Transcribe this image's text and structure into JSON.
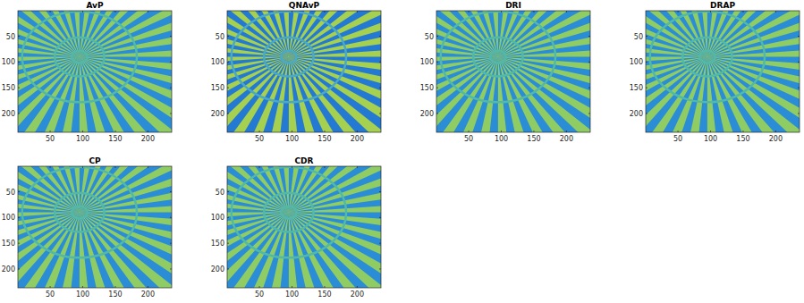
{
  "chart_data": [
    {
      "type": "image",
      "title": "AvP",
      "xlim": [
        0.5,
        236.5
      ],
      "ylim": [
        236.5,
        0.5
      ],
      "xticks": [
        50,
        100,
        150,
        200
      ],
      "yticks": [
        50,
        100,
        150,
        200
      ],
      "center": [
        95,
        90
      ],
      "spokes": 36,
      "rings": [
        12,
        38,
        88
      ],
      "colors": [
        "#2b8dd6",
        "#8fcd64",
        "#52b9a8"
      ]
    },
    {
      "type": "image",
      "title": "QNAvP",
      "xlim": [
        0.5,
        236.5
      ],
      "ylim": [
        236.5,
        0.5
      ],
      "xticks": [
        50,
        100,
        150,
        200
      ],
      "yticks": [
        50,
        100,
        150,
        200
      ],
      "center": [
        95,
        90
      ],
      "spokes": 36,
      "rings": [
        12,
        38,
        88
      ],
      "colors": [
        "#2479d2",
        "#a6d050",
        "#4aa9c4"
      ]
    },
    {
      "type": "image",
      "title": "DRI",
      "xlim": [
        0.5,
        236.5
      ],
      "ylim": [
        236.5,
        0.5
      ],
      "xticks": [
        50,
        100,
        150,
        200
      ],
      "yticks": [
        50,
        100,
        150,
        200
      ],
      "center": [
        95,
        90
      ],
      "spokes": 36,
      "rings": [
        12,
        38,
        88
      ],
      "colors": [
        "#2b8dd6",
        "#8fcd64",
        "#52b9a8"
      ]
    },
    {
      "type": "image",
      "title": "DRAP",
      "xlim": [
        0.5,
        236.5
      ],
      "ylim": [
        236.5,
        0.5
      ],
      "xticks": [
        50,
        100,
        150,
        200
      ],
      "yticks": [
        50,
        100,
        150,
        200
      ],
      "center": [
        95,
        90
      ],
      "spokes": 36,
      "rings": [
        12,
        38,
        88
      ],
      "colors": [
        "#2b8dd6",
        "#8fcd64",
        "#52b9a8"
      ]
    },
    {
      "type": "image",
      "title": "CP",
      "xlim": [
        0.5,
        236.5
      ],
      "ylim": [
        236.5,
        0.5
      ],
      "xticks": [
        50,
        100,
        150,
        200
      ],
      "yticks": [
        50,
        100,
        150,
        200
      ],
      "center": [
        95,
        90
      ],
      "spokes": 36,
      "rings": [
        12,
        38,
        88
      ],
      "colors": [
        "#2b8dd6",
        "#8fcd64",
        "#52b9a8"
      ]
    },
    {
      "type": "image",
      "title": "CDR",
      "xlim": [
        0.5,
        236.5
      ],
      "ylim": [
        236.5,
        0.5
      ],
      "xticks": [
        50,
        100,
        150,
        200
      ],
      "yticks": [
        50,
        100,
        150,
        200
      ],
      "center": [
        95,
        90
      ],
      "spokes": 36,
      "rings": [
        12,
        38,
        88
      ],
      "colors": [
        "#2b8dd6",
        "#8fcd64",
        "#52b9a8"
      ]
    }
  ]
}
